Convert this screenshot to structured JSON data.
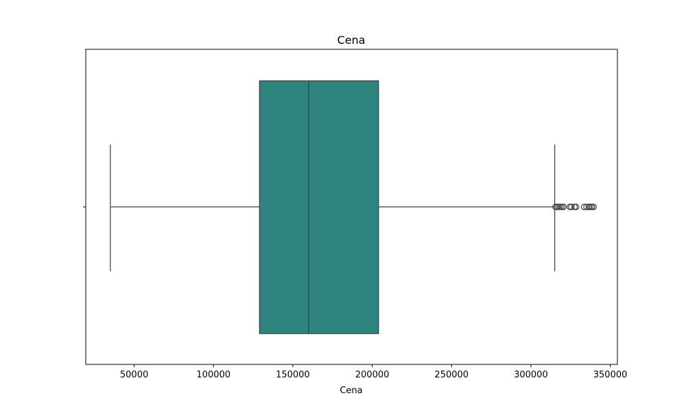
{
  "chart_data": {
    "type": "box",
    "title": "Cena",
    "xlabel": "Cena",
    "ylabel": "",
    "xlim": [
      19500,
      354500
    ],
    "x_ticks": [
      50000,
      100000,
      150000,
      200000,
      250000,
      300000,
      350000
    ],
    "x_tick_labels": [
      "50000",
      "100000",
      "150000",
      "200000",
      "250000",
      "300000",
      "350000"
    ],
    "grid": false,
    "legend": "none",
    "box": {
      "whisker_low": 35000,
      "q1": 129000,
      "median": 160000,
      "q3": 204000,
      "whisker_high": 315000
    },
    "outliers": [
      315500,
      316500,
      317500,
      318500,
      319500,
      320500,
      324500,
      325500,
      327500,
      328500,
      333500,
      335000,
      336500,
      337500,
      338500,
      339500
    ],
    "colors": {
      "box_fill": "#2e847e",
      "line": "#3a3a3a"
    }
  }
}
